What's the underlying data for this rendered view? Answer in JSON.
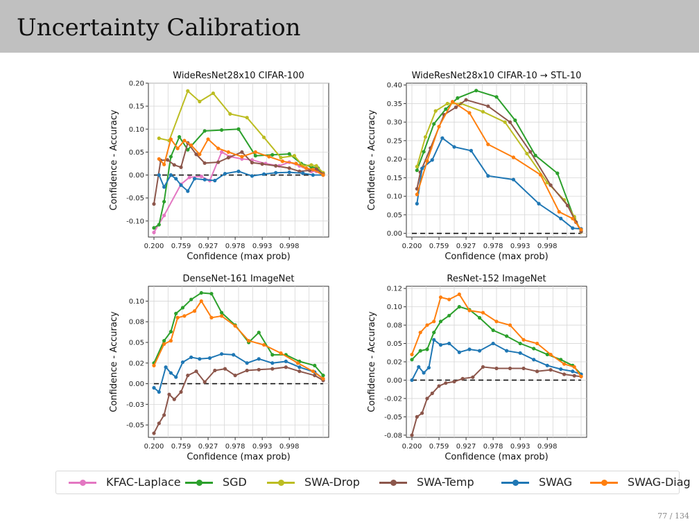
{
  "slide": {
    "title": "Uncertainty Calibration",
    "page_number": "77 / 134"
  },
  "series_styles": [
    {
      "name": "KFAC-Laplace",
      "color": "#e377c2"
    },
    {
      "name": "SGD",
      "color": "#2ca02c"
    },
    {
      "name": "SWA-Drop",
      "color": "#bcbd22"
    },
    {
      "name": "SWA-Temp",
      "color": "#8c564b"
    },
    {
      "name": "SWAG",
      "color": "#1f77b4"
    },
    {
      "name": "SWAG-Diag",
      "color": "#ff7f0e"
    }
  ],
  "chart_data": [
    {
      "type": "line",
      "title": "WideResNet28x10 CIFAR-100",
      "xlabel": "Confidence (max prob)",
      "ylabel": "Confidence - Accuracy",
      "x_tick_labels": [
        "0.200",
        "0.759",
        "0.927",
        "0.978",
        "0.993",
        "0.998"
      ],
      "y_ticks": [
        -0.1,
        -0.05,
        0.0,
        0.05,
        0.1,
        0.15,
        0.2
      ],
      "y_tick_labels": [
        "-0.10",
        "-0.05",
        "0.00",
        "0.05",
        "0.10",
        "0.15",
        "0.20"
      ],
      "ylim": [
        -0.135,
        0.2
      ],
      "grid": true,
      "zero_line": true,
      "series": [
        {
          "name": "KFAC-Laplace",
          "x": [
            0.0,
            0.06,
            0.16,
            0.21,
            0.28,
            0.33,
            0.4,
            0.45,
            0.52,
            0.58,
            0.66,
            0.74,
            0.8,
            0.86,
            0.93,
            0.96,
            1.0
          ],
          "y": [
            -0.125,
            -0.088,
            -0.02,
            -0.005,
            -0.003,
            -0.012,
            0.05,
            0.04,
            0.035,
            0.033,
            0.025,
            0.02,
            0.028,
            0.02,
            0.008,
            0.008,
            0.0
          ]
        },
        {
          "name": "SGD",
          "x": [
            0.0,
            0.03,
            0.06,
            0.1,
            0.15,
            0.2,
            0.3,
            0.4,
            0.5,
            0.6,
            0.7,
            0.8,
            0.87,
            0.93,
            0.97,
            1.0
          ],
          "y": [
            -0.115,
            -0.108,
            -0.058,
            0.04,
            0.083,
            0.055,
            0.096,
            0.098,
            0.1,
            0.042,
            0.044,
            0.046,
            0.025,
            0.018,
            0.015,
            0.003
          ]
        },
        {
          "name": "SWA-Drop",
          "x": [
            0.03,
            0.09,
            0.2,
            0.27,
            0.35,
            0.45,
            0.55,
            0.65,
            0.75,
            0.83,
            0.88,
            0.93,
            0.96,
            1.0
          ],
          "y": [
            0.08,
            0.075,
            0.183,
            0.16,
            0.178,
            0.133,
            0.125,
            0.082,
            0.038,
            0.042,
            0.02,
            0.022,
            0.02,
            0.005
          ]
        },
        {
          "name": "SWA-Temp",
          "x": [
            0.0,
            0.04,
            0.08,
            0.12,
            0.16,
            0.2,
            0.25,
            0.3,
            0.38,
            0.44,
            0.52,
            0.58,
            0.64,
            0.72,
            0.8,
            0.86,
            0.92,
            0.96,
            1.0
          ],
          "y": [
            -0.063,
            0.032,
            0.033,
            0.022,
            0.017,
            0.07,
            0.045,
            0.026,
            0.028,
            0.038,
            0.05,
            0.027,
            0.024,
            0.02,
            0.015,
            0.008,
            0.01,
            0.013,
            0.002
          ]
        },
        {
          "name": "SWAG",
          "x": [
            0.03,
            0.06,
            0.1,
            0.13,
            0.16,
            0.2,
            0.24,
            0.3,
            0.36,
            0.42,
            0.5,
            0.58,
            0.65,
            0.72,
            0.8,
            0.88,
            0.94,
            1.0
          ],
          "y": [
            0.0,
            -0.026,
            0.0,
            -0.008,
            -0.022,
            -0.035,
            -0.008,
            -0.01,
            -0.012,
            0.003,
            0.008,
            -0.002,
            0.002,
            0.005,
            0.006,
            0.004,
            0.0,
            0.0
          ]
        },
        {
          "name": "SWAG-Diag",
          "x": [
            0.03,
            0.06,
            0.1,
            0.14,
            0.18,
            0.22,
            0.27,
            0.32,
            0.38,
            0.44,
            0.52,
            0.6,
            0.68,
            0.76,
            0.84,
            0.9,
            0.94,
            1.0
          ],
          "y": [
            0.035,
            0.023,
            0.078,
            0.058,
            0.075,
            0.065,
            0.045,
            0.078,
            0.058,
            0.05,
            0.04,
            0.05,
            0.04,
            0.03,
            0.025,
            0.015,
            0.012,
            0.0
          ]
        }
      ]
    },
    {
      "type": "line",
      "title": "WideResNet28x10 CIFAR-10 → STL-10",
      "xlabel": "Confidence (max prob)",
      "ylabel": "Confidence - Accuracy",
      "x_tick_labels": [
        "0.200",
        "0.759",
        "0.927",
        "0.978",
        "0.993",
        "0.998"
      ],
      "y_ticks": [
        0.0,
        0.05,
        0.1,
        0.15,
        0.2,
        0.25,
        0.3,
        0.35,
        0.4
      ],
      "y_tick_labels": [
        "0.00",
        "0.05",
        "0.10",
        "0.15",
        "0.20",
        "0.25",
        "0.30",
        "0.35",
        "0.40"
      ],
      "ylim": [
        -0.01,
        0.405
      ],
      "grid": true,
      "zero_line": true,
      "series": [
        {
          "name": "SGD",
          "x": [
            0.03,
            0.07,
            0.13,
            0.2,
            0.27,
            0.38,
            0.5,
            0.61,
            0.73,
            0.86,
            0.96,
            1.0
          ],
          "y": [
            0.17,
            0.22,
            0.295,
            0.335,
            0.365,
            0.385,
            0.368,
            0.305,
            0.21,
            0.162,
            0.04,
            0.006
          ]
        },
        {
          "name": "SWA-Drop",
          "x": [
            0.03,
            0.08,
            0.14,
            0.21,
            0.29,
            0.42,
            0.55,
            0.68,
            0.8,
            0.9,
            0.96,
            1.0
          ],
          "y": [
            0.18,
            0.26,
            0.33,
            0.35,
            0.35,
            0.328,
            0.3,
            0.215,
            0.137,
            0.09,
            0.045,
            0.004
          ]
        },
        {
          "name": "SWA-Temp",
          "x": [
            0.03,
            0.05,
            0.11,
            0.19,
            0.26,
            0.32,
            0.45,
            0.58,
            0.7,
            0.82,
            0.92,
            0.97,
            1.0
          ],
          "y": [
            0.12,
            0.165,
            0.23,
            0.32,
            0.34,
            0.36,
            0.343,
            0.3,
            0.22,
            0.13,
            0.075,
            0.03,
            0.005
          ]
        },
        {
          "name": "SWAG",
          "x": [
            0.03,
            0.06,
            0.12,
            0.18,
            0.25,
            0.35,
            0.45,
            0.6,
            0.75,
            0.88,
            0.95,
            1.0
          ],
          "y": [
            0.08,
            0.175,
            0.198,
            0.257,
            0.233,
            0.223,
            0.155,
            0.145,
            0.08,
            0.04,
            0.014,
            0.012
          ]
        },
        {
          "name": "SWAG-Diag",
          "x": [
            0.03,
            0.09,
            0.16,
            0.24,
            0.34,
            0.45,
            0.6,
            0.76,
            0.87,
            0.95,
            1.0
          ],
          "y": [
            0.105,
            0.195,
            0.288,
            0.355,
            0.325,
            0.24,
            0.205,
            0.158,
            0.058,
            0.04,
            0.01
          ]
        }
      ]
    },
    {
      "type": "line",
      "title": "DenseNet-161 ImageNet",
      "xlabel": "Confidence (max prob)",
      "ylabel": "Confidence - Accuracy",
      "x_tick_labels": [
        "0.200",
        "0.759",
        "0.927",
        "0.978",
        "0.993",
        "0.998"
      ],
      "y_ticks": [
        -0.05,
        -0.025,
        0.0,
        0.025,
        0.05,
        0.075,
        0.1
      ],
      "y_tick_labels": [
        "-0.05",
        "-0.03",
        "0.00",
        "0.02",
        "0.05",
        "0.08",
        "0.10"
      ],
      "ylim": [
        -0.065,
        0.118
      ],
      "grid": true,
      "zero_line": true,
      "series": [
        {
          "name": "SGD",
          "x": [
            0.0,
            0.06,
            0.1,
            0.13,
            0.17,
            0.22,
            0.28,
            0.34,
            0.4,
            0.48,
            0.56,
            0.62,
            0.7,
            0.78,
            0.86,
            0.95,
            1.0
          ],
          "y": [
            0.025,
            0.052,
            0.063,
            0.085,
            0.092,
            0.102,
            0.11,
            0.109,
            0.086,
            0.071,
            0.05,
            0.062,
            0.035,
            0.035,
            0.027,
            0.022,
            0.01
          ]
        },
        {
          "name": "SWA-Temp",
          "x": [
            0.0,
            0.03,
            0.06,
            0.09,
            0.12,
            0.16,
            0.2,
            0.25,
            0.3,
            0.36,
            0.42,
            0.48,
            0.55,
            0.62,
            0.7,
            0.78,
            0.86,
            0.95,
            1.0
          ],
          "y": [
            -0.06,
            -0.048,
            -0.038,
            -0.013,
            -0.019,
            -0.01,
            0.01,
            0.015,
            0.002,
            0.016,
            0.018,
            0.01,
            0.016,
            0.017,
            0.018,
            0.02,
            0.015,
            0.01,
            0.004
          ]
        },
        {
          "name": "SWAG",
          "x": [
            0.0,
            0.03,
            0.07,
            0.1,
            0.13,
            0.17,
            0.22,
            0.27,
            0.33,
            0.4,
            0.47,
            0.55,
            0.62,
            0.7,
            0.78,
            0.86,
            0.95,
            1.0
          ],
          "y": [
            -0.005,
            -0.01,
            0.02,
            0.013,
            0.008,
            0.026,
            0.032,
            0.03,
            0.031,
            0.036,
            0.035,
            0.025,
            0.03,
            0.025,
            0.027,
            0.02,
            0.014,
            0.006
          ]
        },
        {
          "name": "SWAG-Diag",
          "x": [
            0.0,
            0.06,
            0.1,
            0.14,
            0.18,
            0.24,
            0.28,
            0.34,
            0.4,
            0.48,
            0.56,
            0.65,
            0.75,
            0.85,
            0.94,
            1.0
          ],
          "y": [
            0.022,
            0.048,
            0.052,
            0.08,
            0.082,
            0.088,
            0.1,
            0.08,
            0.082,
            0.07,
            0.052,
            0.047,
            0.037,
            0.025,
            0.015,
            0.006
          ]
        }
      ]
    },
    {
      "type": "line",
      "title": "ResNet-152 ImageNet",
      "xlabel": "Confidence (max prob)",
      "ylabel": "Confidence - Accuracy",
      "x_tick_labels": [
        "0.200",
        "0.759",
        "0.927",
        "0.978",
        "0.993",
        "0.998"
      ],
      "y_ticks": [
        -0.075,
        -0.05,
        -0.025,
        0.0,
        0.025,
        0.05,
        0.075,
        0.1,
        0.125
      ],
      "y_tick_labels": [
        "-0.08",
        "-0.05",
        "-0.02",
        "0.00",
        "0.02",
        "0.05",
        "0.08",
        "0.10",
        "0.12"
      ],
      "ylim": [
        -0.078,
        0.128
      ],
      "grid": true,
      "zero_line": true,
      "series": [
        {
          "name": "SGD",
          "x": [
            0.0,
            0.05,
            0.09,
            0.13,
            0.17,
            0.22,
            0.28,
            0.34,
            0.4,
            0.48,
            0.56,
            0.64,
            0.72,
            0.8,
            0.88,
            0.95,
            1.0
          ],
          "y": [
            0.028,
            0.04,
            0.042,
            0.065,
            0.08,
            0.088,
            0.1,
            0.096,
            0.085,
            0.068,
            0.06,
            0.05,
            0.043,
            0.035,
            0.028,
            0.02,
            0.008
          ]
        },
        {
          "name": "SWA-Temp",
          "x": [
            0.0,
            0.03,
            0.06,
            0.09,
            0.12,
            0.16,
            0.2,
            0.25,
            0.3,
            0.36,
            0.42,
            0.5,
            0.58,
            0.66,
            0.74,
            0.82,
            0.9,
            0.96,
            1.0
          ],
          "y": [
            -0.075,
            -0.05,
            -0.045,
            -0.025,
            -0.018,
            -0.008,
            -0.004,
            -0.002,
            0.002,
            0.004,
            0.018,
            0.016,
            0.016,
            0.016,
            0.012,
            0.014,
            0.008,
            0.006,
            0.005
          ]
        },
        {
          "name": "SWAG",
          "x": [
            0.0,
            0.04,
            0.07,
            0.1,
            0.13,
            0.17,
            0.22,
            0.28,
            0.34,
            0.4,
            0.48,
            0.56,
            0.64,
            0.72,
            0.8,
            0.88,
            0.95,
            1.0
          ],
          "y": [
            0.0,
            0.018,
            0.01,
            0.017,
            0.055,
            0.048,
            0.05,
            0.038,
            0.042,
            0.04,
            0.05,
            0.04,
            0.037,
            0.028,
            0.02,
            0.015,
            0.012,
            0.008
          ]
        },
        {
          "name": "SWAG-Diag",
          "x": [
            0.0,
            0.05,
            0.09,
            0.13,
            0.17,
            0.22,
            0.28,
            0.34,
            0.42,
            0.5,
            0.58,
            0.66,
            0.74,
            0.82,
            0.9,
            0.96,
            1.0
          ],
          "y": [
            0.035,
            0.065,
            0.075,
            0.08,
            0.113,
            0.11,
            0.117,
            0.095,
            0.092,
            0.08,
            0.075,
            0.055,
            0.05,
            0.035,
            0.022,
            0.018,
            0.005
          ]
        }
      ]
    }
  ]
}
